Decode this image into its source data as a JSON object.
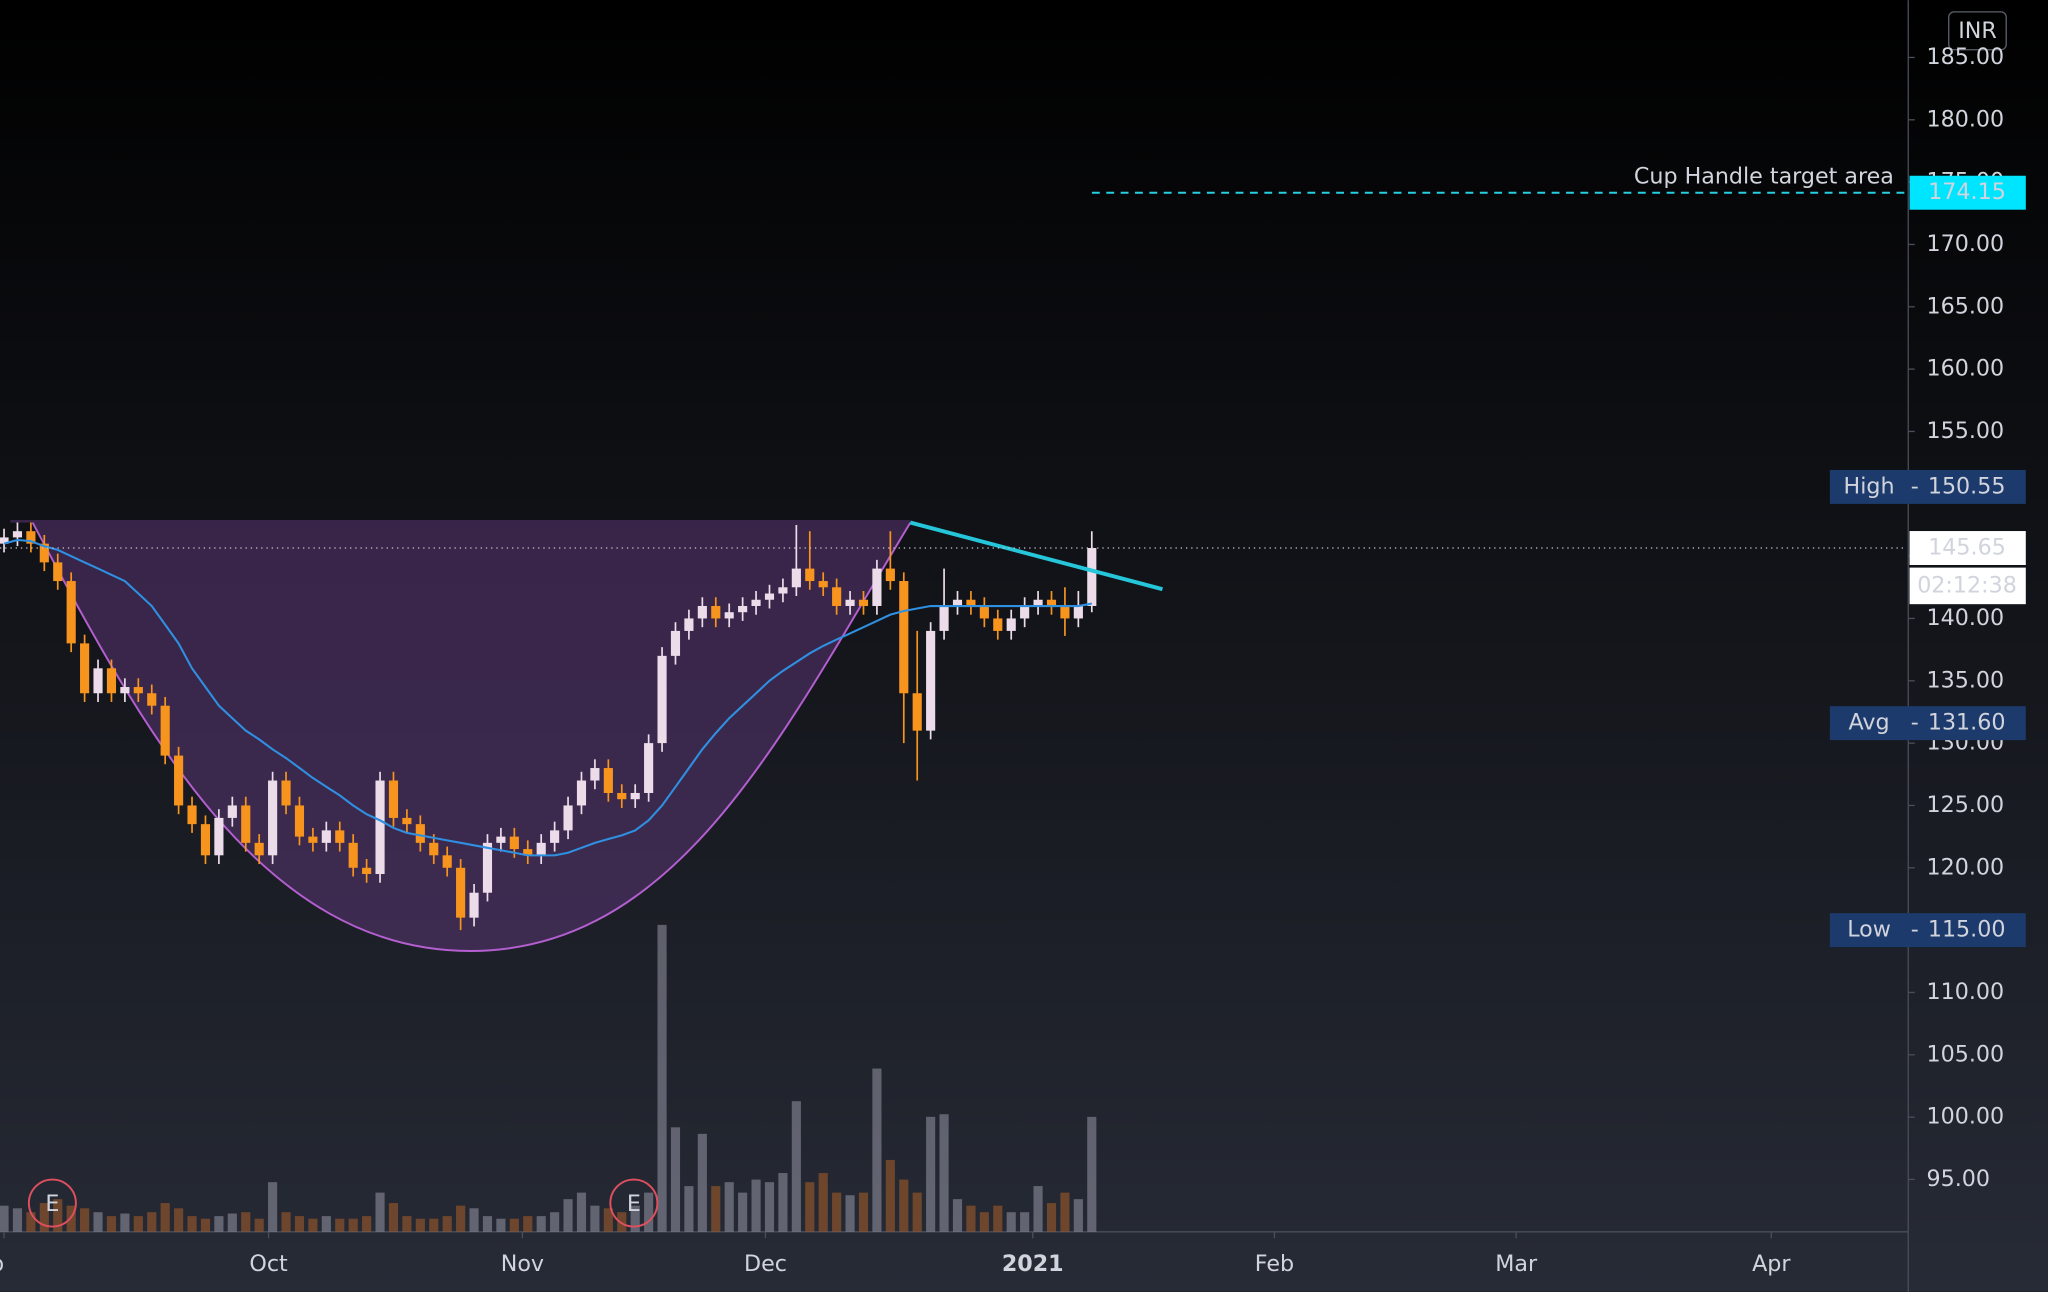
{
  "chart_data": {
    "type": "candlestick",
    "ohlc": [
      [
        146,
        147.2,
        145.3,
        146.5
      ],
      [
        146.5,
        147.7,
        145.8,
        147
      ],
      [
        147,
        147.7,
        145.3,
        146
      ],
      [
        146,
        146.7,
        143.8,
        144.5
      ],
      [
        144.5,
        145.2,
        142.3,
        143
      ],
      [
        143,
        143.7,
        137.3,
        138
      ],
      [
        138,
        138.7,
        133.3,
        134
      ],
      [
        134,
        136.7,
        133.3,
        136
      ],
      [
        136,
        136.7,
        133.3,
        134
      ],
      [
        134,
        135.2,
        133.3,
        134.5
      ],
      [
        134.5,
        135.2,
        133.3,
        134
      ],
      [
        134,
        134.7,
        132.3,
        133
      ],
      [
        133,
        133.7,
        128.3,
        129
      ],
      [
        129,
        129.7,
        124.3,
        125
      ],
      [
        125,
        125.7,
        122.8,
        123.5
      ],
      [
        123.5,
        124.2,
        120.3,
        121
      ],
      [
        121,
        124.7,
        120.3,
        124
      ],
      [
        124,
        125.7,
        123.3,
        125
      ],
      [
        125,
        125.7,
        121.3,
        122
      ],
      [
        122,
        122.7,
        120.3,
        121
      ],
      [
        121,
        127.7,
        120.3,
        127
      ],
      [
        127,
        127.7,
        124.3,
        125
      ],
      [
        125,
        125.7,
        121.8,
        122.5
      ],
      [
        122.5,
        123.2,
        121.3,
        122
      ],
      [
        122,
        123.7,
        121.3,
        123
      ],
      [
        123,
        123.7,
        121.3,
        122
      ],
      [
        122,
        122.7,
        119.3,
        120
      ],
      [
        120,
        120.7,
        118.8,
        119.5
      ],
      [
        119.5,
        127.7,
        118.8,
        127
      ],
      [
        127,
        127.7,
        123.3,
        124
      ],
      [
        124,
        124.7,
        122.8,
        123.5
      ],
      [
        123.5,
        124.2,
        121.3,
        122
      ],
      [
        122,
        122.7,
        120.3,
        121
      ],
      [
        121,
        121.7,
        119.3,
        120
      ],
      [
        120,
        120.7,
        115,
        116
      ],
      [
        116,
        118.7,
        115.3,
        118
      ],
      [
        118,
        122.7,
        117.3,
        122
      ],
      [
        122,
        123.2,
        121.3,
        122.5
      ],
      [
        122.5,
        123.2,
        120.8,
        121.5
      ],
      [
        121.5,
        122.2,
        120.3,
        121
      ],
      [
        121,
        122.7,
        120.3,
        122
      ],
      [
        122,
        123.7,
        121.3,
        123
      ],
      [
        123,
        125.7,
        122.3,
        125
      ],
      [
        125,
        127.7,
        124.3,
        127
      ],
      [
        127,
        128.7,
        126.3,
        128
      ],
      [
        128,
        128.7,
        125.3,
        126
      ],
      [
        126,
        126.7,
        124.8,
        125.5
      ],
      [
        125.5,
        126.7,
        124.8,
        126
      ],
      [
        126,
        130.7,
        125.3,
        130
      ],
      [
        130,
        137.7,
        129.3,
        137
      ],
      [
        137,
        139.7,
        136.3,
        139
      ],
      [
        139,
        140.7,
        138.3,
        140
      ],
      [
        140,
        141.7,
        139.3,
        141
      ],
      [
        141,
        141.7,
        139.3,
        140
      ],
      [
        140,
        141.2,
        139.3,
        140.5
      ],
      [
        140.5,
        141.7,
        139.8,
        141
      ],
      [
        141,
        142.2,
        140.3,
        141.5
      ],
      [
        141.5,
        142.7,
        140.8,
        142
      ],
      [
        142,
        143.2,
        141.3,
        142.5
      ],
      [
        142.5,
        147.5,
        141.8,
        144
      ],
      [
        144,
        147,
        142.3,
        143
      ],
      [
        143,
        143.7,
        141.8,
        142.5
      ],
      [
        142.5,
        143.2,
        140.3,
        141
      ],
      [
        141,
        142.2,
        140.3,
        141.5
      ],
      [
        141.5,
        142.2,
        140.3,
        141
      ],
      [
        141,
        144.7,
        140.3,
        144
      ],
      [
        144,
        147,
        142.3,
        143
      ],
      [
        143,
        143.7,
        130,
        134
      ],
      [
        134,
        139,
        127,
        131
      ],
      [
        131,
        139.7,
        130.3,
        139
      ],
      [
        139,
        144,
        138.3,
        141
      ],
      [
        141,
        142.2,
        140.3,
        141.5
      ],
      [
        141.5,
        142.2,
        140.3,
        141
      ],
      [
        141,
        141.7,
        139.3,
        140
      ],
      [
        140,
        140.7,
        138.3,
        139
      ],
      [
        139,
        140.7,
        138.3,
        140
      ],
      [
        140,
        141.7,
        139.3,
        141
      ],
      [
        141,
        142.2,
        140.3,
        141.5
      ],
      [
        141.5,
        142.2,
        140.3,
        141
      ],
      [
        141,
        142.5,
        138.6,
        140
      ],
      [
        140,
        142.2,
        139.3,
        141
      ],
      [
        141,
        147,
        140.5,
        145.65
      ]
    ],
    "volume": [
      20,
      18,
      15,
      22,
      25,
      20,
      18,
      15,
      12,
      14,
      12,
      15,
      22,
      18,
      12,
      10,
      12,
      14,
      15,
      10,
      38,
      15,
      12,
      10,
      12,
      10,
      10,
      12,
      30,
      22,
      12,
      10,
      10,
      12,
      20,
      18,
      12,
      10,
      10,
      12,
      12,
      15,
      25,
      30,
      20,
      18,
      15,
      20,
      30,
      235,
      80,
      35,
      75,
      35,
      38,
      30,
      40,
      38,
      45,
      100,
      38,
      45,
      30,
      28,
      30,
      125,
      55,
      40,
      30,
      88,
      90,
      25,
      20,
      15,
      20,
      15,
      15,
      35,
      22,
      30,
      25,
      88
    ],
    "ma": [
      146,
      146.3,
      146.2,
      145.8,
      145.5,
      145,
      144.5,
      144,
      143.5,
      143,
      142,
      141,
      139.5,
      138,
      136,
      134.5,
      133,
      132,
      131,
      130.3,
      129.5,
      128.8,
      128,
      127.2,
      126.5,
      125.8,
      125,
      124.3,
      123.8,
      123.2,
      122.8,
      122.6,
      122.4,
      122.2,
      122,
      121.8,
      121.6,
      121.4,
      121.2,
      121,
      121,
      121,
      121.2,
      121.6,
      122,
      122.3,
      122.6,
      123,
      123.8,
      125,
      126.5,
      128,
      129.5,
      130.8,
      132,
      133,
      134,
      135,
      135.8,
      136.5,
      137.2,
      137.8,
      138.3,
      138.8,
      139.3,
      139.8,
      140.3,
      140.6,
      140.8,
      141,
      141,
      141,
      141,
      141,
      141,
      141,
      141,
      141,
      141,
      141,
      141,
      141.2
    ],
    "up_color": "#ecdcea",
    "down_color": "#f7941d",
    "ma_color": "#2f8fe0",
    "ylim": [
      90.8,
      189.6
    ],
    "yticks": [
      {
        "value": 95,
        "label": "95.00"
      },
      {
        "value": 100,
        "label": "100.00"
      },
      {
        "value": 105,
        "label": "105.00"
      },
      {
        "value": 110,
        "label": "110.00"
      },
      {
        "value": 115,
        "label": "115.00"
      },
      {
        "value": 120,
        "label": "120.00"
      },
      {
        "value": 125,
        "label": "125.00"
      },
      {
        "value": 130,
        "label": "130.00"
      },
      {
        "value": 135,
        "label": "135.00"
      },
      {
        "value": 140,
        "label": "140.00"
      },
      {
        "value": 145,
        "label": "145.00"
      },
      {
        "value": 150,
        "label": "150.00"
      },
      {
        "value": 155,
        "label": "155.00"
      },
      {
        "value": 160,
        "label": "160.00"
      },
      {
        "value": 165,
        "label": "165.00"
      },
      {
        "value": 170,
        "label": "170.00"
      },
      {
        "value": 175,
        "label": "175.00"
      },
      {
        "value": 180,
        "label": "180.00"
      },
      {
        "value": 185,
        "label": "185.00"
      }
    ],
    "xlim": [
      -0.3,
      141.7
    ],
    "xticks": [
      {
        "value": 0,
        "label": "ep"
      },
      {
        "value": 19.7,
        "label": "Oct"
      },
      {
        "value": 38.6,
        "label": "Nov"
      },
      {
        "value": 56.7,
        "label": "Dec"
      },
      {
        "value": 76.6,
        "label": "2021"
      },
      {
        "value": 94.6,
        "label": "Feb"
      },
      {
        "value": 112.6,
        "label": "Mar"
      },
      {
        "value": 131.6,
        "label": "Apr"
      }
    ],
    "price_labels": [
      {
        "name": "High",
        "value": 150.55,
        "label": "150.55"
      },
      {
        "name": "Avg",
        "value": 131.6,
        "label": "131.60"
      },
      {
        "name": "Low",
        "value": 115,
        "label": "115.00"
      }
    ],
    "last_price": {
      "value": 145.65,
      "label": "145.65"
    },
    "countdown": "02:12:38",
    "currency": "INR",
    "target": {
      "text": "Cup Handle target area",
      "value": 174.15,
      "label": "174.15"
    },
    "events": [
      {
        "label": "E",
        "x": 3.6
      },
      {
        "label": "E",
        "x": 46.9
      }
    ]
  }
}
